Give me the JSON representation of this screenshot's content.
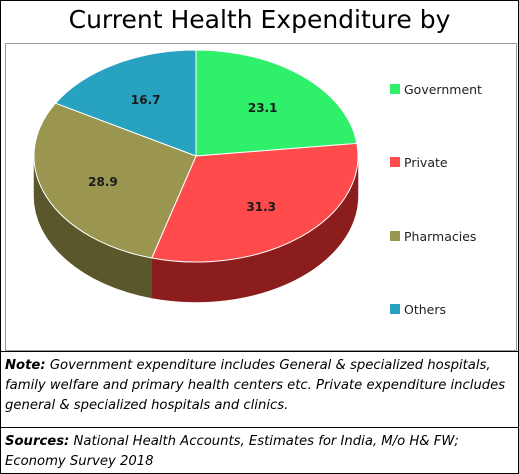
{
  "chart_data": {
    "type": "pie",
    "title": "Current Health Expenditure by",
    "slices": [
      {
        "label": "Government",
        "value": 23.1,
        "color": "#2ff06a",
        "side_color": "#1a8f3c"
      },
      {
        "label": "Private",
        "value": 31.3,
        "color": "#ff4b4b",
        "side_color": "#8c1d1d"
      },
      {
        "label": "Pharmacies",
        "value": 28.9,
        "color": "#9a9650",
        "side_color": "#5a572c"
      },
      {
        "label": "Others",
        "value": 16.7,
        "color": "#27a3c1",
        "side_color": "#156275"
      }
    ],
    "legend_position": "right",
    "style": "3d"
  },
  "note": {
    "label": "Note:",
    "text": " Government expenditure includes General & specialized hospitals, family welfare and primary health centers etc. Private expenditure includes general & specialized hospitals and clinics."
  },
  "sources": {
    "label": "Sources:",
    "text": " National Health Accounts, Estimates for India, M/o H& FW; Economy Survey 2018"
  }
}
